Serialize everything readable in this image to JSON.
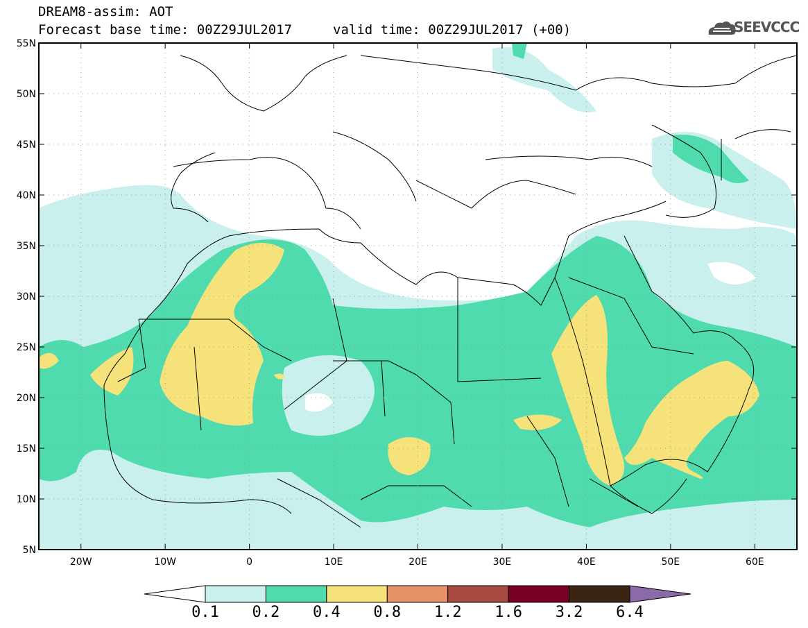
{
  "header": {
    "title": "DREAM8-assim: AOT",
    "base_time": "Forecast base time: 00Z29JUL2017",
    "valid_time": "valid time: 00Z29JUL2017 (+00)",
    "logo_text": "SEEVCCC"
  },
  "map": {
    "lon_range": [
      -25,
      65
    ],
    "lat_range": [
      5,
      55
    ],
    "lat_labels": [
      "55N",
      "50N",
      "45N",
      "40N",
      "35N",
      "30N",
      "25N",
      "20N",
      "15N",
      "10N",
      "5N"
    ],
    "lon_labels": [
      "20W",
      "10W",
      "0",
      "10E",
      "20E",
      "30E",
      "40E",
      "50E",
      "60E"
    ],
    "grid": "dotted"
  },
  "legend": {
    "labels": [
      "0.1",
      "0.2",
      "0.4",
      "0.8",
      "1.2",
      "1.6",
      "3.2",
      "6.4"
    ],
    "colors": [
      "#ffffff",
      "#c9f0ec",
      "#4fdbae",
      "#f5e27a",
      "#e8926a",
      "#a84a3e",
      "#7a0023",
      "#3b2412",
      "#8a6aa8"
    ]
  }
}
